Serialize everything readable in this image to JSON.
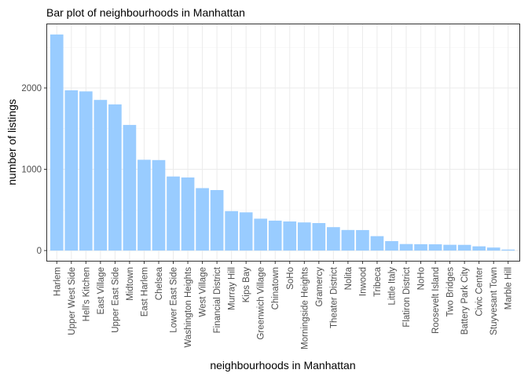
{
  "chart_data": {
    "type": "bar",
    "title": "Bar plot of neighbourhoods in Manhattan",
    "xlabel": "neighbourhoods in Manhattan",
    "ylabel": "number of listings",
    "ylim": [
      0,
      2800
    ],
    "yticks": [
      0,
      1000,
      2000
    ],
    "grid": true,
    "bar_color": "#99ccff",
    "categories": [
      "Harlem",
      "Upper West Side",
      "Hell's Kitchen",
      "East Village",
      "Upper East Side",
      "Midtown",
      "East Harlem",
      "Chelsea",
      "Lower East Side",
      "Washington Heights",
      "West Village",
      "Financial District",
      "Murray Hill",
      "Kips Bay",
      "Greenwich Village",
      "Chinatown",
      "SoHo",
      "Morningside Heights",
      "Gramercy",
      "Theater District",
      "Nolita",
      "Inwood",
      "Tribeca",
      "Little Italy",
      "Flatiron District",
      "NoHo",
      "Roosevelt Island",
      "Two Bridges",
      "Battery Park City",
      "Civic Center",
      "Stuyvesant Town",
      "Marble Hill"
    ],
    "values": [
      2658,
      1971,
      1958,
      1853,
      1798,
      1545,
      1117,
      1113,
      911,
      899,
      768,
      744,
      485,
      470,
      392,
      368,
      358,
      346,
      338,
      288,
      253,
      252,
      177,
      116,
      80,
      78,
      77,
      71,
      70,
      52,
      37,
      12
    ]
  }
}
